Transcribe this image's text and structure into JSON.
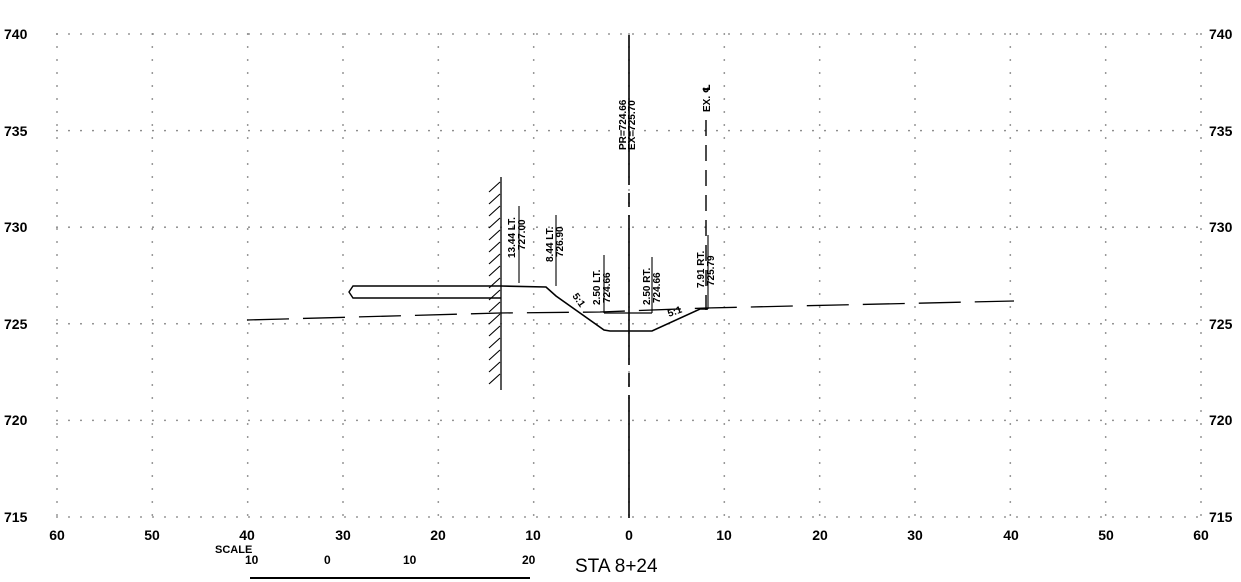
{
  "station_label": "STA 8+24",
  "scale": {
    "title": "SCALE",
    "labels": [
      "10",
      "0",
      "10",
      "20"
    ]
  },
  "axes": {
    "elevations": [
      740,
      735,
      730,
      725,
      720,
      715
    ],
    "offsets": [
      60,
      50,
      40,
      30,
      20,
      10,
      0,
      10,
      20,
      30,
      40,
      50,
      60
    ]
  },
  "annotations": {
    "cl_pr": "PR=724.66",
    "cl_ex": "EX=725.70",
    "ex_cl": "EX. ℄",
    "lt_1344_off": "13.44 LT.",
    "lt_1344_elev": "727.00",
    "lt_844_off": "8.44 LT.",
    "lt_844_elev": "726.90",
    "lt_250_off": "2.50 LT.",
    "lt_250_elev": "724.66",
    "rt_250_off": "2.50 RT.",
    "rt_250_elev": "724.66",
    "rt_791_off": "7.91 RT.",
    "rt_791_elev": "725.79",
    "slope_left": "5:1",
    "slope_right": "5:1"
  },
  "colors": {
    "line": "#000000",
    "grid_dots": "#7a7a7a"
  }
}
